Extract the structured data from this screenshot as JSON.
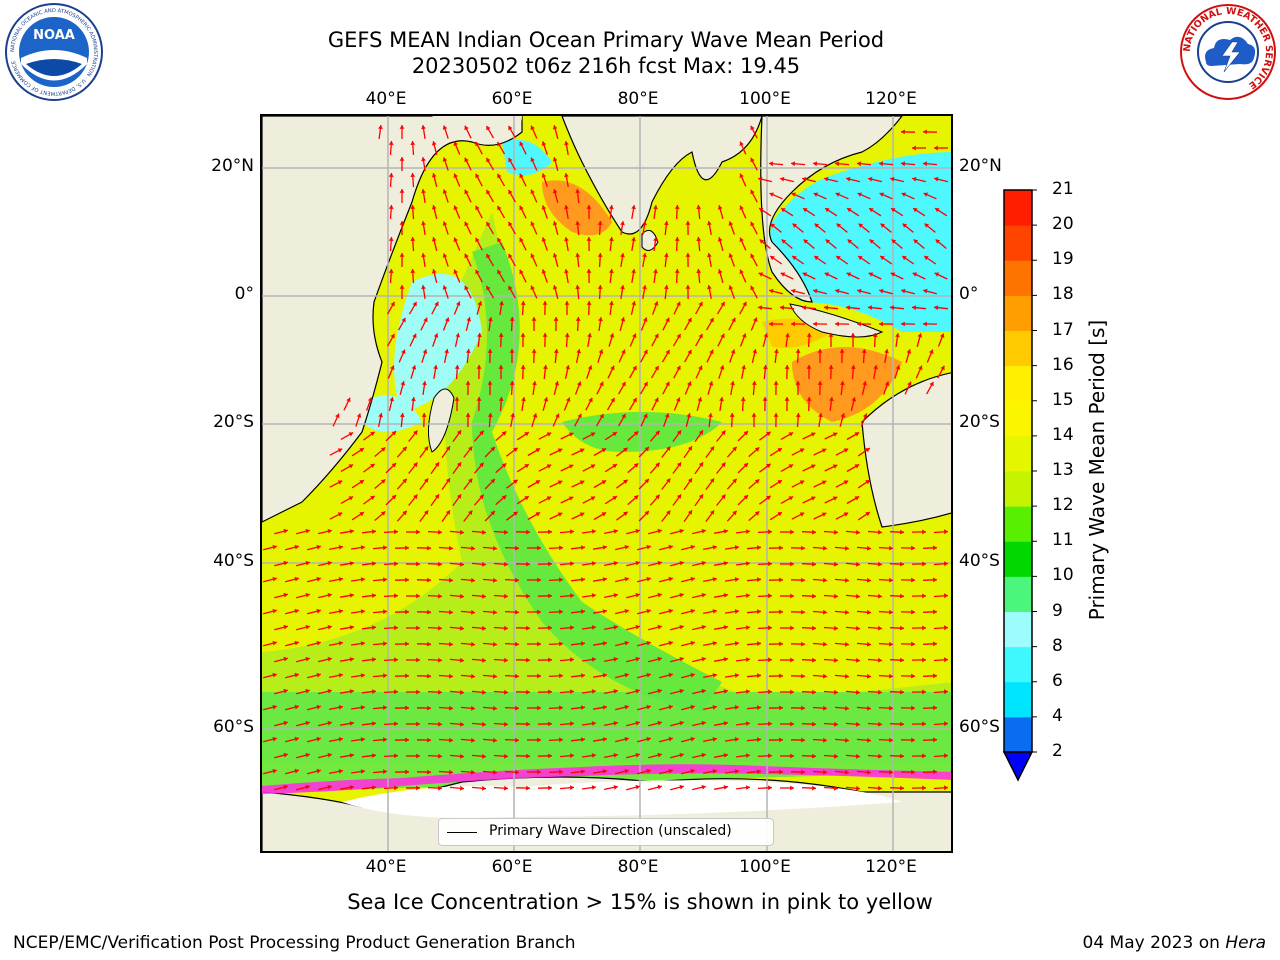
{
  "title_line1": "GEFS MEAN Indian Ocean Primary Wave Mean Period",
  "title_line2": "20230502 t06z 216h fcst   Max: 19.45",
  "axes": {
    "lon_ticks": [
      "40°E",
      "60°E",
      "80°E",
      "100°E",
      "120°E"
    ],
    "lon_values": [
      40,
      60,
      80,
      100,
      120
    ],
    "lat_ticks": [
      "20°N",
      "0°",
      "20°S",
      "40°S",
      "60°S"
    ],
    "lat_values": [
      20,
      0,
      -20,
      -40,
      -60
    ],
    "lon_range": [
      20,
      130
    ],
    "lat_range": [
      -70,
      28
    ],
    "grid": true
  },
  "legend": {
    "label": "Primary Wave Direction (unscaled)"
  },
  "colorbar": {
    "title": "Primary Wave Mean Period [s]",
    "levels": [
      "2",
      "4",
      "6",
      "8",
      "9",
      "10",
      "11",
      "12",
      "13",
      "14",
      "15",
      "16",
      "17",
      "18",
      "19",
      "20",
      "21"
    ],
    "colors": [
      "#0a6cf0",
      "#00e5ff",
      "#3ef7ff",
      "#9dfdfd",
      "#4cf57b",
      "#00d800",
      "#58f000",
      "#c5f300",
      "#e4f700",
      "#fbf500",
      "#fff000",
      "#ffcb00",
      "#ff9e00",
      "#ff7400",
      "#ff4400",
      "#ff1e00"
    ],
    "under_color": "#0000ff"
  },
  "colors": {
    "land": "#efeedd",
    "arrow": "#ff0000",
    "grid": "#b4b4b4",
    "ice": "#ff30e0"
  },
  "note": "Sea Ice Concentration > 15% is shown in pink to yellow",
  "footer": {
    "left": "NCEP/EMC/Verification Post Processing Product Generation Branch",
    "right_prefix": "04 May 2023 on ",
    "right_machine": "Hera"
  },
  "logos": {
    "noaa": "NOAA",
    "noaa_ring": "NATIONAL OCEANIC AND ATMOSPHERIC ADMINISTRATION · U.S. DEPARTMENT OF COMMERCE",
    "nws_ring": "NATIONAL WEATHER SERVICE"
  }
}
